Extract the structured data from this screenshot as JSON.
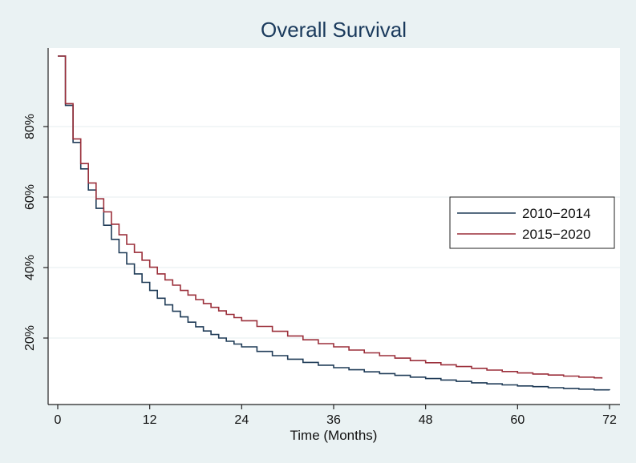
{
  "chart_data": {
    "type": "line",
    "title": "Overall Survival",
    "xlabel": "Time (Months)",
    "ylabel": "",
    "xlim": [
      0,
      72
    ],
    "ylim": [
      0,
      100
    ],
    "x_ticks": [
      0,
      12,
      24,
      36,
      48,
      60,
      72
    ],
    "y_ticks": [
      20,
      40,
      60,
      80
    ],
    "y_tick_labels": [
      "20%",
      "40%",
      "60%",
      "80%"
    ],
    "grid": "horizontal",
    "legend_position": "right",
    "step": true,
    "series": [
      {
        "name": "2010−2014",
        "color": "#1f3b57",
        "x": [
          0,
          1,
          2,
          3,
          4,
          5,
          6,
          7,
          8,
          9,
          10,
          11,
          12,
          13,
          14,
          15,
          16,
          17,
          18,
          19,
          20,
          21,
          22,
          23,
          24,
          26,
          28,
          30,
          32,
          34,
          36,
          38,
          40,
          42,
          44,
          46,
          48,
          50,
          52,
          54,
          56,
          58,
          60,
          62,
          64,
          66,
          68,
          70,
          72
        ],
        "y": [
          100,
          86,
          75.5,
          68,
          62,
          56.8,
          52,
          48,
          44.2,
          41,
          38.2,
          35.8,
          33.5,
          31.3,
          29.4,
          27.6,
          26,
          24.5,
          23.2,
          22,
          21,
          20,
          19.1,
          18.3,
          17.5,
          16.2,
          15,
          14,
          13.1,
          12.3,
          11.6,
          11,
          10.4,
          9.9,
          9.4,
          8.9,
          8.5,
          8.1,
          7.7,
          7.3,
          7,
          6.7,
          6.4,
          6.2,
          5.9,
          5.7,
          5.5,
          5.3,
          5.2
        ]
      },
      {
        "name": "2015−2020",
        "color": "#9b2f3a",
        "x": [
          0,
          1,
          2,
          3,
          4,
          5,
          6,
          7,
          8,
          9,
          10,
          11,
          12,
          13,
          14,
          15,
          16,
          17,
          18,
          19,
          20,
          21,
          22,
          23,
          24,
          26,
          28,
          30,
          32,
          34,
          36,
          38,
          40,
          42,
          44,
          46,
          48,
          50,
          52,
          54,
          56,
          58,
          60,
          62,
          64,
          66,
          68,
          70,
          71
        ],
        "y": [
          100,
          86.5,
          76.5,
          69.5,
          64,
          59.5,
          55.8,
          52.3,
          49.3,
          46.6,
          44.3,
          42.1,
          40.1,
          38.2,
          36.5,
          35,
          33.5,
          32.2,
          30.9,
          29.8,
          28.7,
          27.7,
          26.7,
          25.8,
          24.9,
          23.3,
          21.9,
          20.6,
          19.5,
          18.4,
          17.5,
          16.6,
          15.8,
          15,
          14.3,
          13.6,
          13,
          12.4,
          11.9,
          11.4,
          10.9,
          10.5,
          10.1,
          9.8,
          9.5,
          9.2,
          8.9,
          8.7,
          8.5
        ]
      }
    ]
  }
}
